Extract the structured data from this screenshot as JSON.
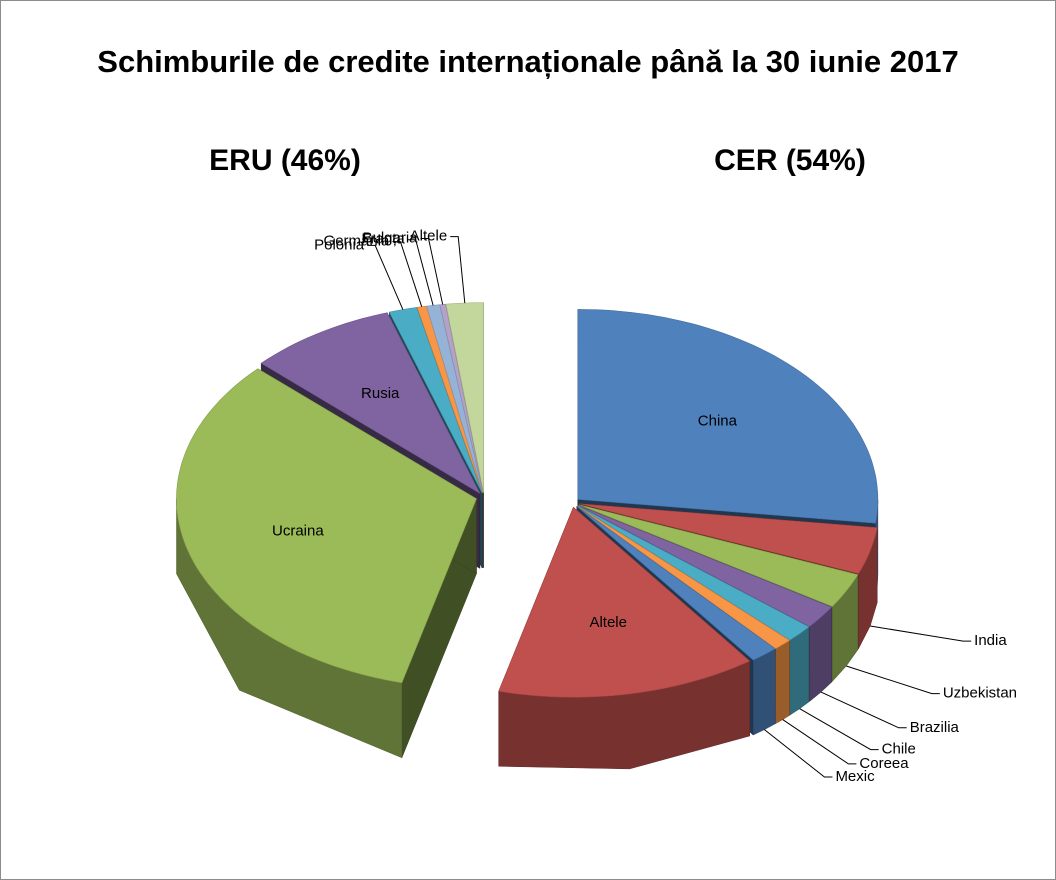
{
  "chart_data": {
    "type": "pie",
    "title": "Schimburile de credite internaționale până la 30 iunie 2017",
    "groups": [
      {
        "label": "CER (54%)",
        "value": 54,
        "categories": [
          "China",
          "India",
          "Uzbekistan",
          "Brazilia",
          "Chile",
          "Coreea",
          "Mexic",
          "Altele"
        ],
        "values": [
          27,
          4,
          3,
          2,
          1.5,
          1,
          1.5,
          14
        ],
        "colors": [
          "#4f81bd",
          "#c0504d",
          "#9bbb59",
          "#8064a2",
          "#4bacc6",
          "#f79646",
          "#4f81bd",
          "#c0504d"
        ]
      },
      {
        "label": "ERU (46%)",
        "value": 46,
        "categories": [
          "Ucraina",
          "Rusia",
          "Polonia",
          "Germania",
          "Franța",
          "Bulgaria",
          "Altele"
        ],
        "values": [
          33,
          8,
          1.5,
          0.5,
          0.7,
          0.3,
          2
        ],
        "colors": [
          "#9bbb59",
          "#8064a2",
          "#4bacc6",
          "#f79646",
          "#95b3d7",
          "#b2a2c7",
          "#c3d69b"
        ]
      }
    ]
  }
}
